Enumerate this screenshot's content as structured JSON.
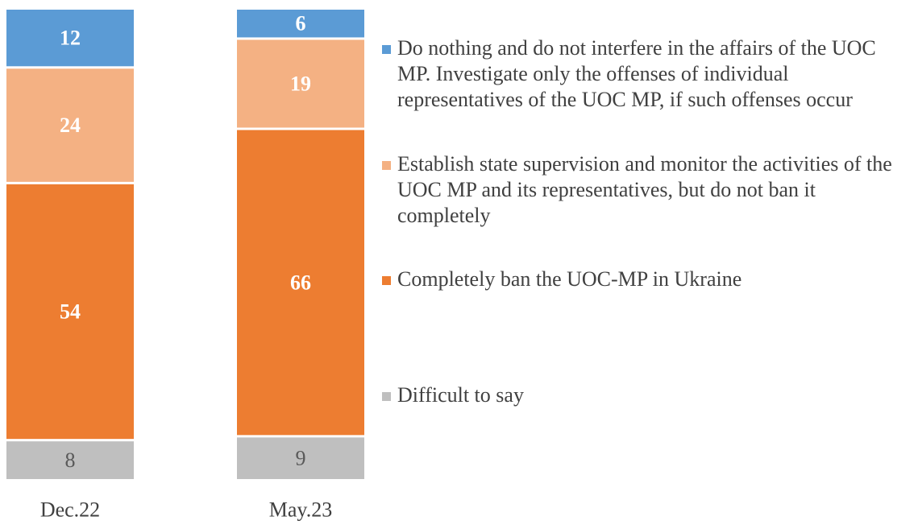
{
  "chart_data": {
    "type": "bar",
    "stacked": true,
    "orientation": "vertical",
    "categories": [
      "Dec.22",
      "May.23"
    ],
    "series": [
      {
        "name": "Difficult to say",
        "values": [
          8,
          9
        ],
        "color": "#bfbfbf",
        "label_color": "#595959",
        "label_bold": false
      },
      {
        "name": "Completely ban the UOC-MP in Ukraine",
        "values": [
          54,
          66
        ],
        "color": "#ed7d31",
        "label_color": "#ffffff",
        "label_bold": true
      },
      {
        "name": "Establish state supervision and monitor the activities of the UOC MP and its representatives, but do not ban it completely",
        "values": [
          24,
          19
        ],
        "color": "#f4b183",
        "label_color": "#ffffff",
        "label_bold": true
      },
      {
        "name": "Do nothing and do not interfere in the affairs of the UOC MP. Investigate only the offenses of individual representatives of the UOC MP, if such offenses occur",
        "values": [
          12,
          6
        ],
        "color": "#5b9bd5",
        "label_color": "#ffffff",
        "label_bold": true
      }
    ],
    "legend_order": [
      3,
      2,
      1,
      0
    ],
    "legend_position": "right",
    "grid": false,
    "axes_visible": false,
    "title": "",
    "xlabel": "",
    "ylabel": ""
  }
}
